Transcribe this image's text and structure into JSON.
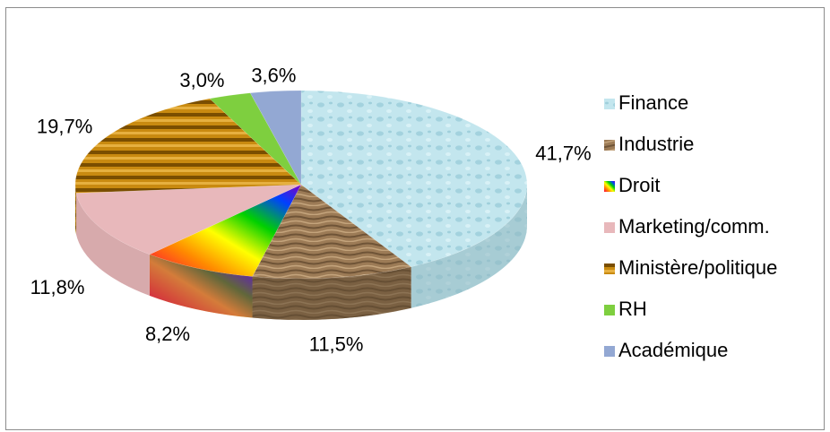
{
  "chart_data": {
    "type": "pie",
    "title": "",
    "categories": [
      "Finance",
      "Industrie",
      "Droit",
      "Marketing/comm.",
      "Ministère/politique",
      "RH",
      "Académique"
    ],
    "values": [
      41.7,
      11.5,
      8.2,
      11.8,
      19.7,
      3.0,
      3.6
    ],
    "value_labels": [
      "41,7%",
      "11,5%",
      "8,2%",
      "11,8%",
      "19,7%",
      "3,0%",
      "3,6%"
    ],
    "legend": "right",
    "style": "3d",
    "colors": [
      "#bfe3ec",
      "#9b7a55",
      "#ff2a6a",
      "#e8b8bb",
      "#c98a10",
      "#7ecf3f",
      "#93a8d3"
    ]
  }
}
